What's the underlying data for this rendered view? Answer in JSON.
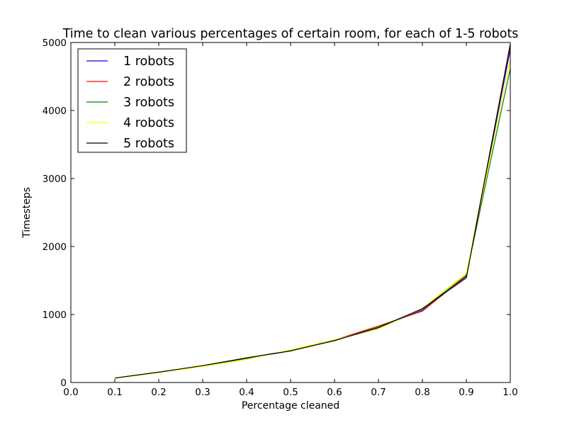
{
  "chart_data": {
    "type": "line",
    "title": "Time to clean various percentages of certain room, for each of 1-5 robots",
    "xlabel": "Percentage cleaned",
    "ylabel": "Timesteps",
    "xlim": [
      0.0,
      1.0
    ],
    "ylim": [
      0,
      5000
    ],
    "xticks": [
      "0.0",
      "0.1",
      "0.2",
      "0.3",
      "0.4",
      "0.5",
      "0.6",
      "0.7",
      "0.8",
      "0.9",
      "1.0"
    ],
    "yticks": [
      "0",
      "1000",
      "2000",
      "3000",
      "4000",
      "5000"
    ],
    "grid": false,
    "legend_position": "top-left",
    "x": [
      0.1,
      0.2,
      0.3,
      0.4,
      0.5,
      0.6,
      0.7,
      0.8,
      0.9,
      1.0
    ],
    "series": [
      {
        "name": "1 robots",
        "color": "#0000ff",
        "values": [
          65,
          150,
          245,
          360,
          470,
          620,
          810,
          1060,
          1560,
          4900
        ]
      },
      {
        "name": "2 robots",
        "color": "#ff0000",
        "values": [
          65,
          150,
          245,
          355,
          465,
          625,
          830,
          1050,
          1570,
          4950
        ]
      },
      {
        "name": "3 robots",
        "color": "#008000",
        "values": [
          62,
          148,
          240,
          355,
          470,
          615,
          815,
          1080,
          1580,
          4620
        ]
      },
      {
        "name": "4 robots",
        "color": "#ffff00",
        "values": [
          60,
          145,
          235,
          340,
          480,
          630,
          790,
          1090,
          1610,
          4750
        ]
      },
      {
        "name": "5 robots",
        "color": "#000000",
        "values": [
          66,
          152,
          248,
          362,
          465,
          618,
          805,
          1085,
          1540,
          4980
        ]
      }
    ]
  }
}
